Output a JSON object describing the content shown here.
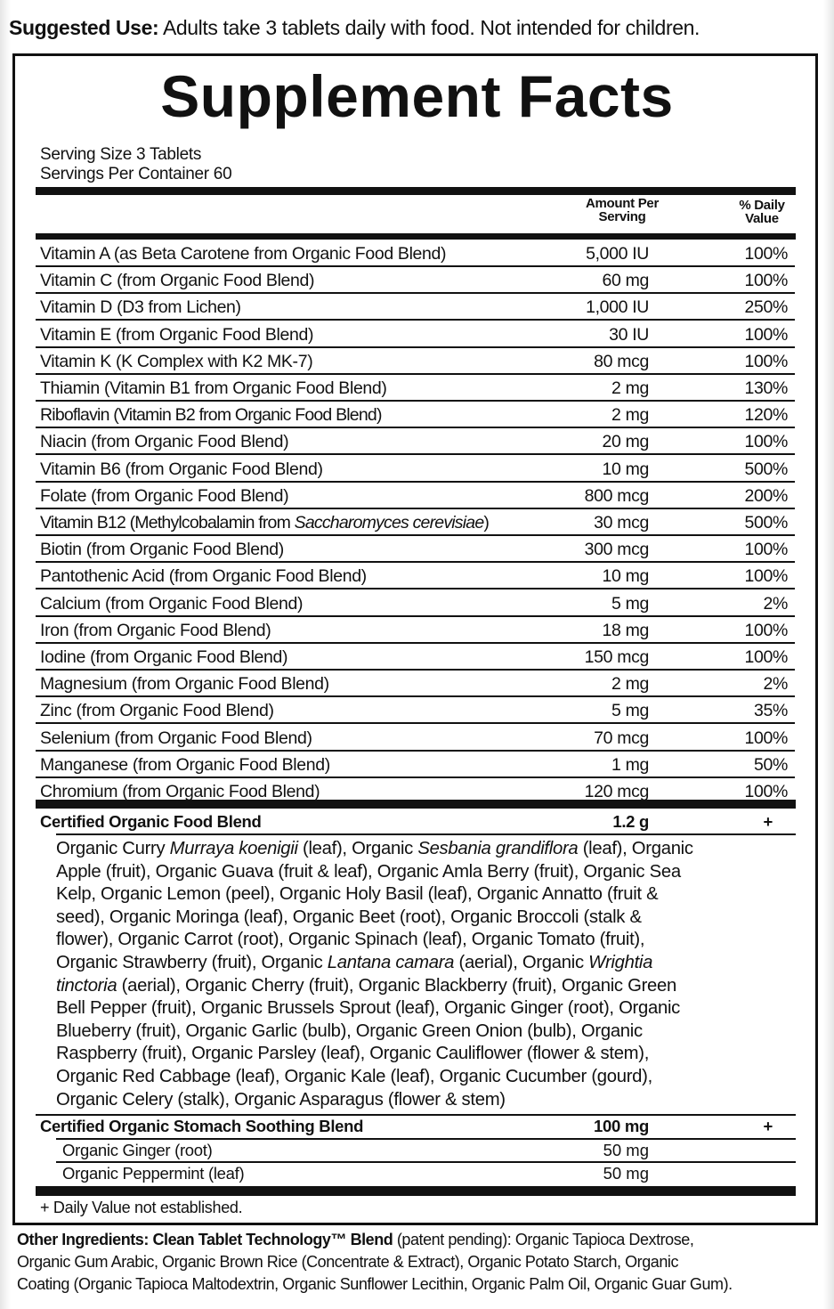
{
  "suggested_use": {
    "label": "Suggested Use:",
    "text": " Adults take 3 tablets daily with food. Not intended for children."
  },
  "title": "Supplement Facts",
  "serving_size": "Serving Size 3 Tablets",
  "servings_per_container": "Servings Per Container 60",
  "headers": {
    "amount_1": "Amount Per",
    "amount_2": "Serving",
    "dv_1": "% Daily",
    "dv_2": "Value"
  },
  "rows": [
    {
      "name": "Vitamin A (as Beta Carotene from Organic Food Blend)",
      "amount": "5,000 IU",
      "dv": "100%"
    },
    {
      "name": "Vitamin C (from Organic Food Blend)",
      "amount": "60 mg",
      "dv": "100%"
    },
    {
      "name": "Vitamin D (D3 from Lichen)",
      "amount": "1,000 IU",
      "dv": "250%"
    },
    {
      "name": "Vitamin E (from Organic Food Blend)",
      "amount": "30 IU",
      "dv": "100%"
    },
    {
      "name": "Vitamin K (K Complex with K2 MK-7)",
      "amount": "80 mcg",
      "dv": "100%"
    },
    {
      "name": "Thiamin (Vitamin B1 from Organic Food Blend)",
      "amount": "2 mg",
      "dv": "130%"
    },
    {
      "name": "Riboflavin (Vitamin B2 from Organic Food Blend)",
      "amount": "2 mg",
      "dv": "120%"
    },
    {
      "name": "Niacin (from Organic Food Blend)",
      "amount": "20 mg",
      "dv": "100%"
    },
    {
      "name": "Vitamin B6 (from Organic Food Blend)",
      "amount": "10 mg",
      "dv": "500%"
    },
    {
      "name": "Folate (from Organic Food Blend)",
      "amount": "800 mcg",
      "dv": "200%"
    },
    {
      "name": "Vitamin B12 (Methylcobalamin from ",
      "name_italic": "Saccharomyces cerevisiae",
      "name_end": ")",
      "amount": "30 mcg",
      "dv": "500%"
    },
    {
      "name": "Biotin (from Organic Food Blend)",
      "amount": "300 mcg",
      "dv": "100%"
    },
    {
      "name": "Pantothenic Acid (from Organic Food Blend)",
      "amount": "10 mg",
      "dv": "100%"
    },
    {
      "name": "Calcium (from Organic Food Blend)",
      "amount": "5 mg",
      "dv": "2%"
    },
    {
      "name": "Iron (from Organic Food Blend)",
      "amount": "18 mg",
      "dv": "100%"
    },
    {
      "name": "Iodine (from Organic Food Blend)",
      "amount": "150 mcg",
      "dv": "100%"
    },
    {
      "name": "Magnesium (from Organic Food Blend)",
      "amount": "2 mg",
      "dv": "2%"
    },
    {
      "name": "Zinc (from Organic Food Blend)",
      "amount": "5 mg",
      "dv": "35%"
    },
    {
      "name": "Selenium (from Organic Food Blend)",
      "amount": "70 mcg",
      "dv": "100%"
    },
    {
      "name": "Manganese (from Organic Food Blend)",
      "amount": "1 mg",
      "dv": "50%"
    },
    {
      "name": "Chromium (from Organic Food Blend)",
      "amount": "120 mcg",
      "dv": "100%"
    }
  ],
  "food_blend": {
    "name": "Certified Organic Food Blend",
    "amount": "1.2 g",
    "dv": "+",
    "lines": [
      [
        {
          "t": "Organic Curry "
        },
        {
          "t": "Murraya koenigii",
          "i": true
        },
        {
          "t": " (leaf), Organic "
        },
        {
          "t": "Sesbania grandiflora",
          "i": true
        },
        {
          "t": " (leaf), Organic"
        }
      ],
      [
        {
          "t": "Apple (fruit), Organic Guava (fruit & leaf), Organic Amla Berry (fruit), Organic Sea"
        }
      ],
      [
        {
          "t": "Kelp, Organic Lemon (peel), Organic Holy Basil (leaf), Organic Annatto (fruit &"
        }
      ],
      [
        {
          "t": "seed), Organic Moringa (leaf), Organic Beet (root), Organic Broccoli (stalk &"
        }
      ],
      [
        {
          "t": "flower), Organic Carrot (root), Organic Spinach (leaf), Organic Tomato (fruit),"
        }
      ],
      [
        {
          "t": "Organic Strawberry (fruit), Organic "
        },
        {
          "t": "Lantana camara",
          "i": true
        },
        {
          "t": " (aerial), Organic "
        },
        {
          "t": "Wrightia",
          "i": true
        }
      ],
      [
        {
          "t": "tinctoria",
          "i": true
        },
        {
          "t": " (aerial), Organic Cherry (fruit), Organic Blackberry (fruit), Organic Green"
        }
      ],
      [
        {
          "t": "Bell Pepper (fruit), Organic Brussels Sprout (leaf), Organic Ginger (root), Organic"
        }
      ],
      [
        {
          "t": "Blueberry (fruit), Organic Garlic (bulb), Organic Green Onion (bulb), Organic"
        }
      ],
      [
        {
          "t": "Raspberry (fruit), Organic Parsley (leaf), Organic Cauliflower (flower & stem),"
        }
      ],
      [
        {
          "t": "Organic Red Cabbage (leaf), Organic Kale (leaf), Organic Cucumber (gourd),"
        }
      ],
      [
        {
          "t": "Organic Celery (stalk), Organic Asparagus (flower & stem)"
        }
      ]
    ]
  },
  "stomach_blend": {
    "name": "Certified Organic Stomach Soothing Blend",
    "amount": "100 mg",
    "dv": "+",
    "items": [
      {
        "name": "Organic Ginger (root)",
        "amount": "50 mg"
      },
      {
        "name": "Organic Peppermint (leaf)",
        "amount": "50 mg"
      }
    ]
  },
  "footnote": "+ Daily Value not established.",
  "other_ingredients": {
    "label": "Other Ingredients: Clean Tablet Technology™ Blend",
    "line1": " (patent pending): Organic Tapioca Dextrose,",
    "line2": "Organic Gum Arabic, Organic Brown Rice (Concentrate & Extract), Organic Potato Starch, Organic",
    "line3": "Coating (Organic Tapioca Maltodextrin, Organic Sunflower Lecithin, Organic Palm Oil, Organic Guar Gum)."
  }
}
